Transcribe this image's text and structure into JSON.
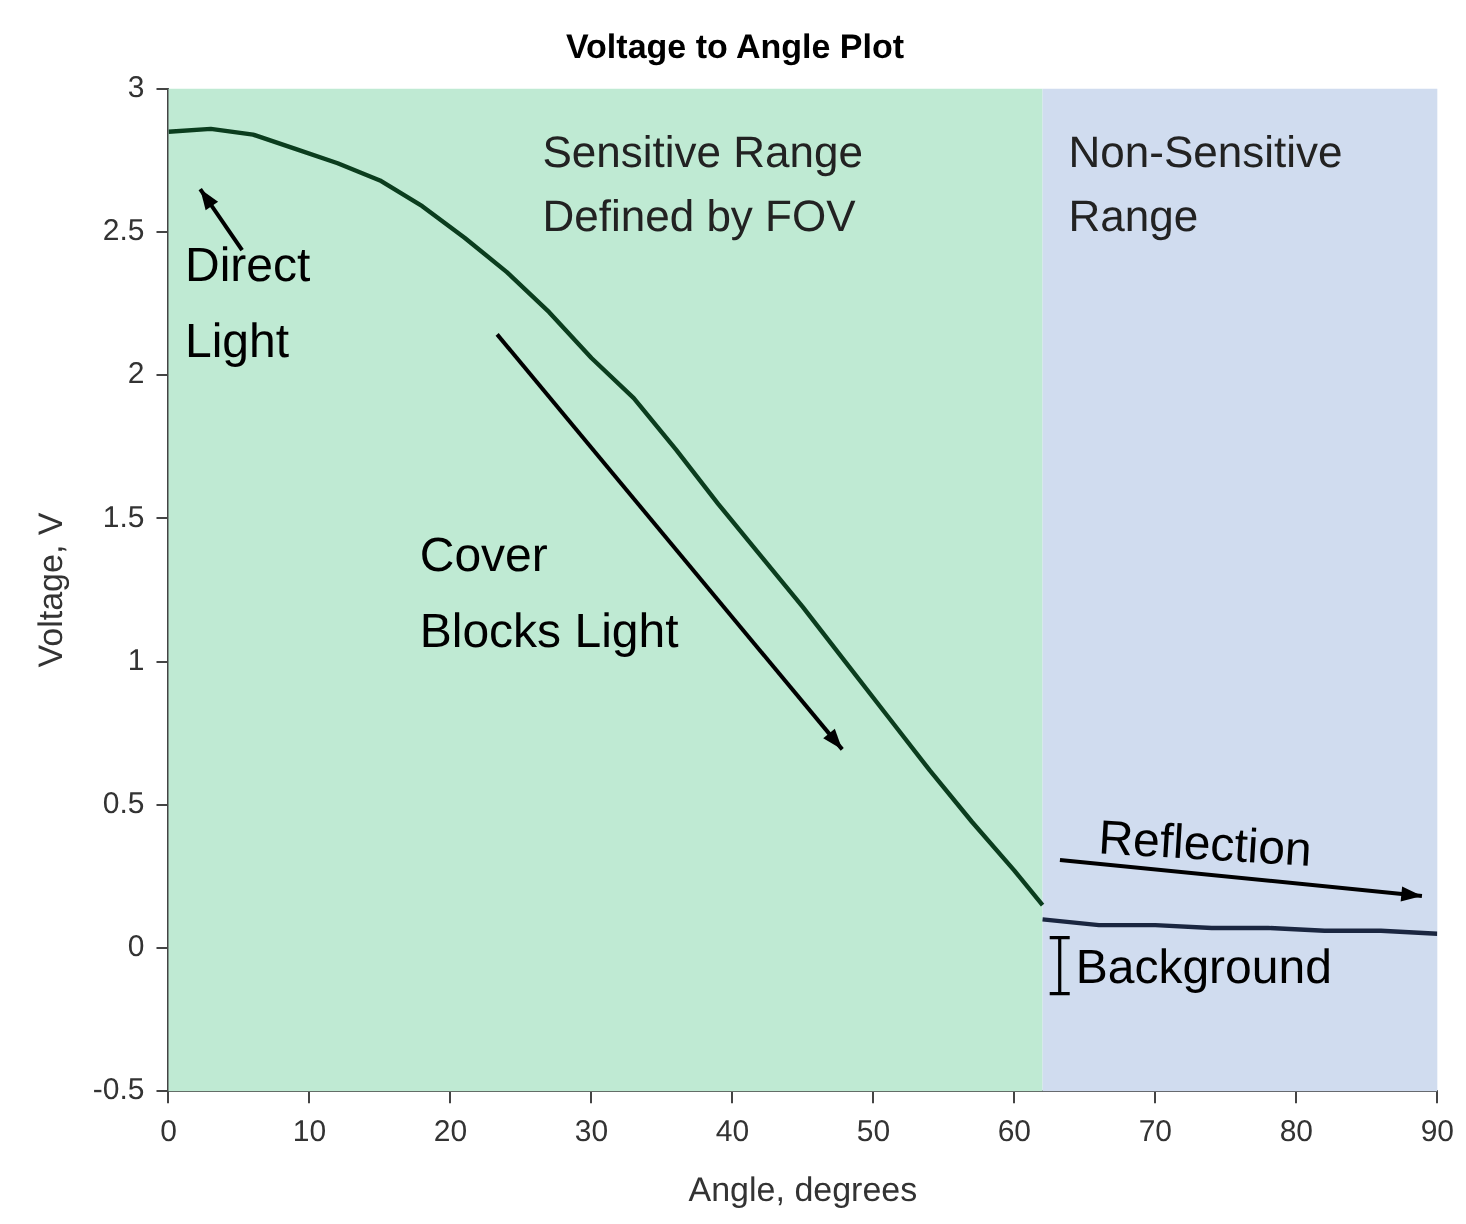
{
  "chart_data": {
    "type": "line",
    "title": "Voltage to Angle Plot",
    "xlabel": "Angle, degrees",
    "ylabel": "Voltage, V",
    "xlim": [
      0,
      90
    ],
    "xticks": [
      0,
      10,
      20,
      30,
      40,
      50,
      60,
      70,
      80,
      90
    ],
    "ylim": [
      -0.5,
      3
    ],
    "yticks": [
      -0.5,
      0,
      0.5,
      1,
      1.5,
      2,
      2.5,
      3
    ],
    "grid": false,
    "legend": false,
    "marker": "none",
    "line_style": "solid",
    "series": [
      {
        "color": "#0b3d1e",
        "x": [
          0,
          3,
          6,
          9,
          12,
          15,
          18,
          21,
          24,
          27,
          30,
          33,
          36,
          39,
          42,
          45,
          48,
          51,
          54,
          57,
          60,
          62
        ],
        "values": [
          2.85,
          2.86,
          2.84,
          2.79,
          2.74,
          2.68,
          2.59,
          2.48,
          2.36,
          2.22,
          2.06,
          1.92,
          1.74,
          1.55,
          1.37,
          1.19,
          1.0,
          0.81,
          0.62,
          0.44,
          0.27,
          0.15
        ]
      },
      {
        "color": "#1a2640",
        "x": [
          62,
          66,
          70,
          74,
          78,
          82,
          86,
          90
        ],
        "values": [
          0.1,
          0.08,
          0.08,
          0.07,
          0.07,
          0.06,
          0.06,
          0.05
        ]
      }
    ],
    "bands": [
      {
        "axis": "x",
        "from": 0,
        "to": 62,
        "label": "Sensitive Range\nDefined by FOV",
        "color": "#bfead3"
      },
      {
        "axis": "x",
        "from": 62,
        "to": 90,
        "label": "Non-Sensitive\nRange",
        "color": "#d0dcef"
      }
    ],
    "annotations": [
      "Direct\nLight",
      "Cover\nBlocks Light",
      {
        "text": "Reflection",
        "x": 76,
        "y": 0.07
      },
      {
        "text": "Background",
        "x": 63.5,
        "y": 0.05
      }
    ]
  }
}
